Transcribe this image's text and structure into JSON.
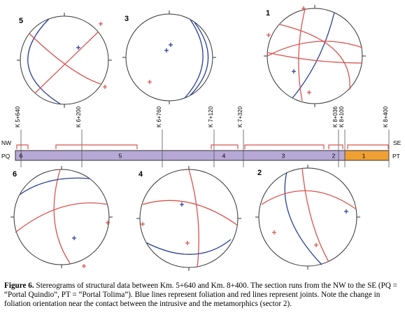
{
  "stereonets": [
    {
      "label": "5"
    },
    {
      "label": "3"
    },
    {
      "label": "1"
    },
    {
      "label": "6"
    },
    {
      "label": "4"
    },
    {
      "label": "2"
    }
  ],
  "section": {
    "start": "NW",
    "end": "SE",
    "left_end": "PQ",
    "right_end": "PT",
    "stations": [
      "K 5+640",
      "K 6+200",
      "K 6+760",
      "K 7+120",
      "K 7+320",
      "K 8+036",
      "K 8+100",
      "K 8+400"
    ],
    "sectors": [
      "6",
      "5",
      "4",
      "3",
      "2",
      "1"
    ]
  },
  "caption": {
    "label": "Figure 6.",
    "text": "Stereograms of structural data between Km. 5+640 and Km. 8+400. The section runs from the NW to the SE (PQ = “Portal Quindio”, PT = “Portal Tolima”). Blue lines represent foliation and red lines represent joints. Note the change in foliation orientation near the contact between the intrusive and the metamorphics (sector 2)."
  }
}
